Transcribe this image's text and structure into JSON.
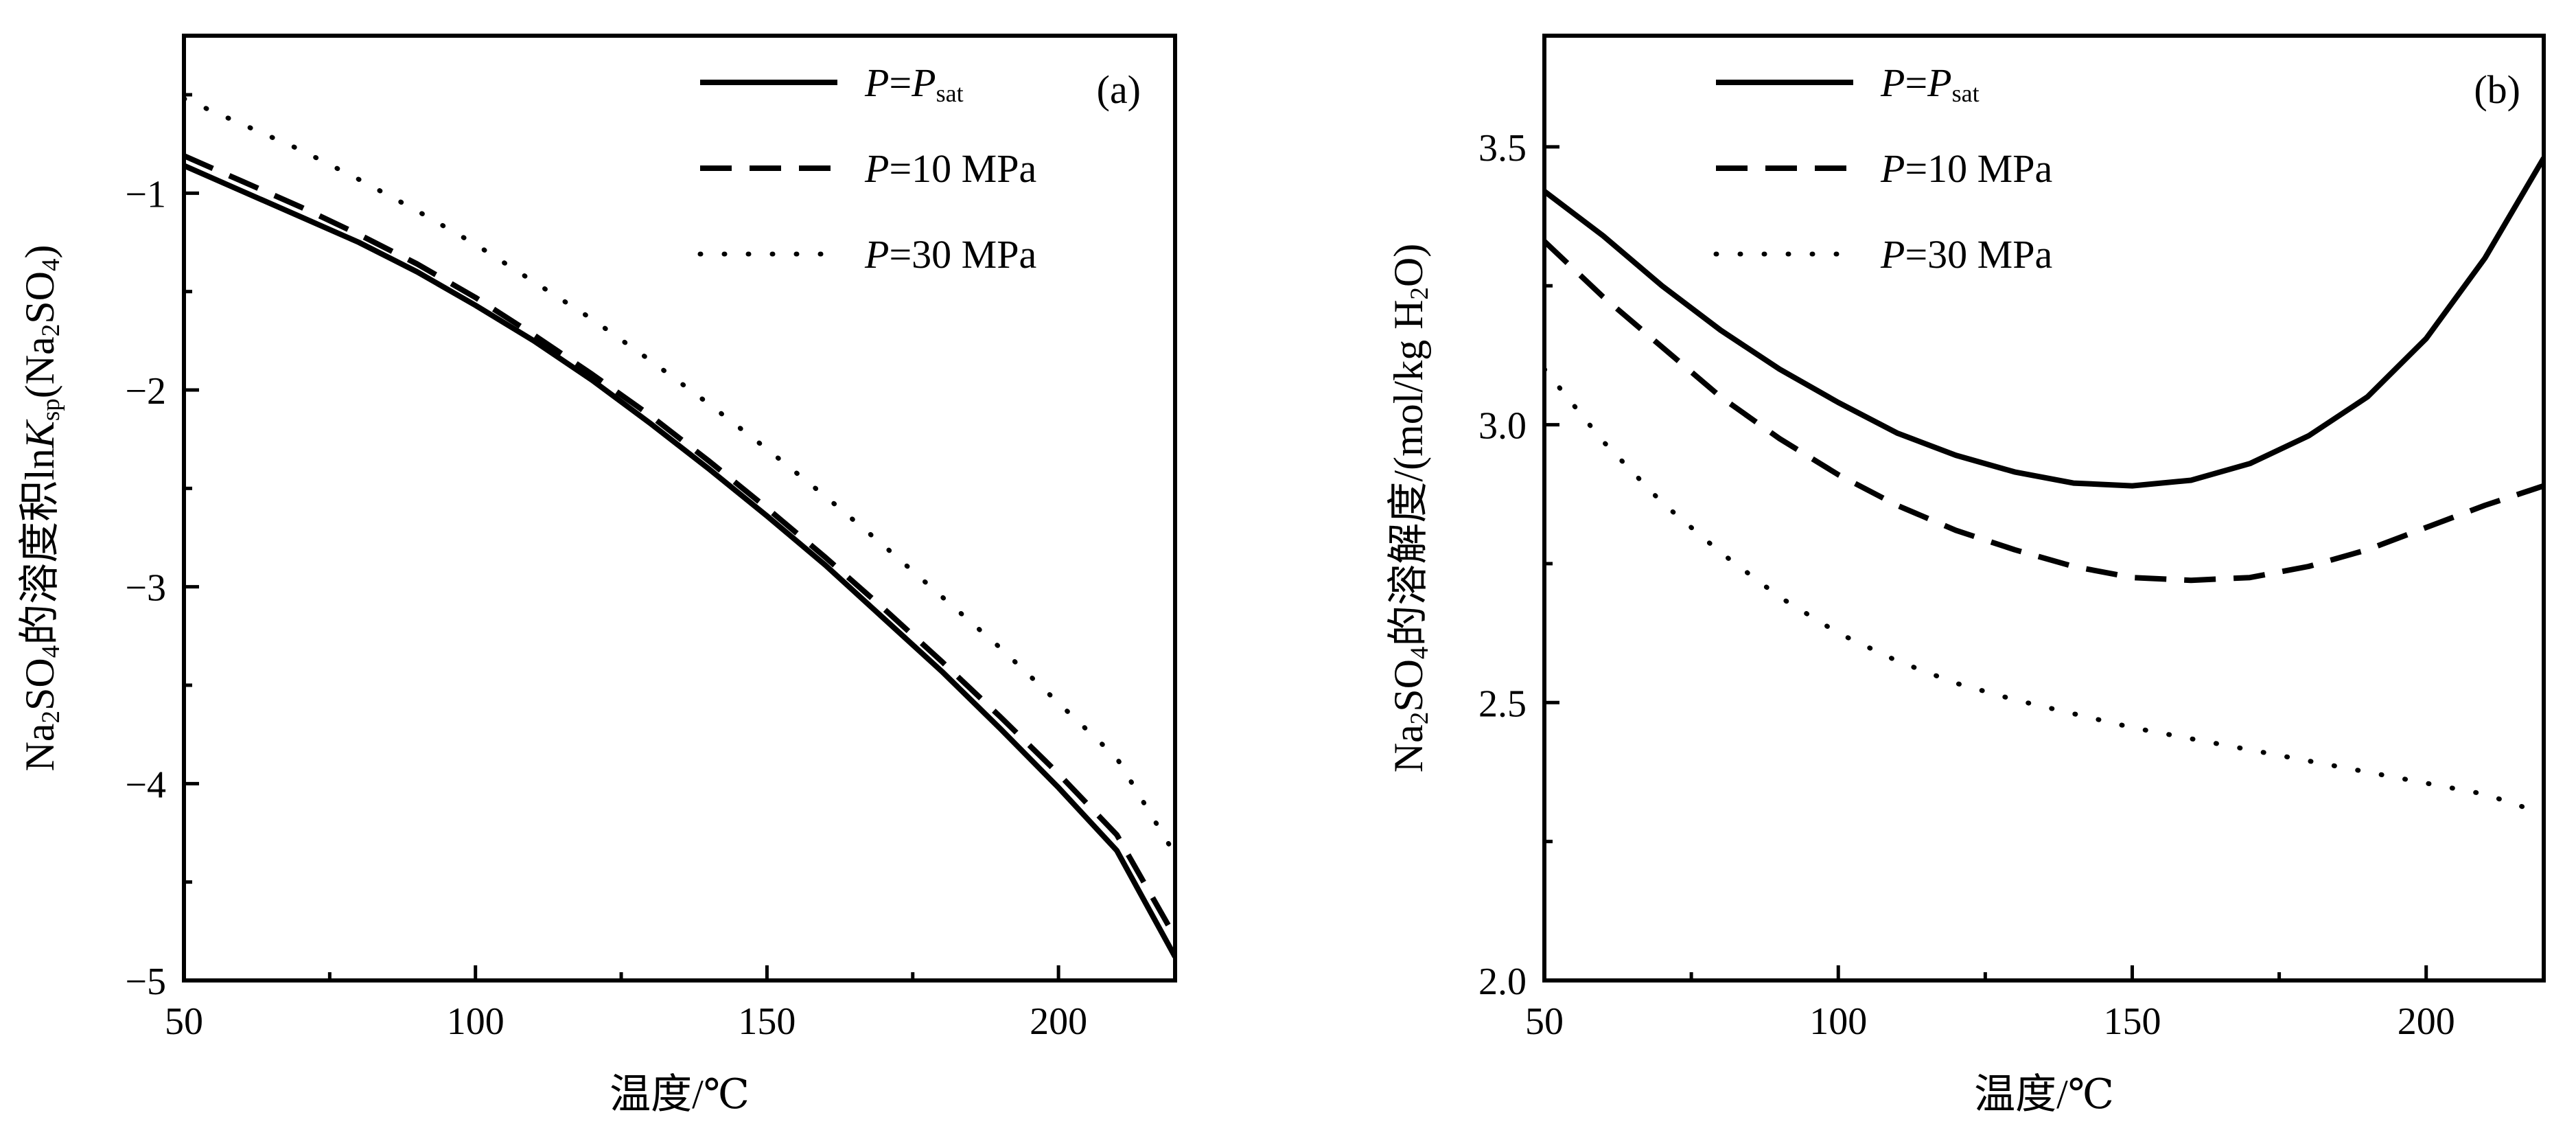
{
  "chart_data": [
    {
      "type": "line",
      "panel_label": "(a)",
      "xlabel": "温度/℃",
      "ylabel": {
        "parts": [
          {
            "t": "Na"
          },
          {
            "t": "2",
            "s": "sub"
          },
          {
            "t": "SO"
          },
          {
            "t": "4",
            "s": "sub"
          },
          {
            "t": "的溶度积ln"
          },
          {
            "t": "K",
            "s": "it"
          },
          {
            "t": "sp",
            "s": "sub"
          },
          {
            "t": "(Na"
          },
          {
            "t": "2",
            "s": "sub"
          },
          {
            "t": "SO"
          },
          {
            "t": "4",
            "s": "sub"
          },
          {
            "t": ")"
          }
        ]
      },
      "xlim": [
        50,
        220
      ],
      "ylim": [
        -5,
        -0.2
      ],
      "xticks": [
        50,
        100,
        150,
        200
      ],
      "xticklabels": [
        "50",
        "100",
        "150",
        "200"
      ],
      "yticks": [
        -5,
        -4,
        -3,
        -2,
        -1
      ],
      "yticklabels": [
        "−5",
        "−4",
        "−3",
        "−2",
        "−1"
      ],
      "grid": false,
      "legend_position": "top-right",
      "series": [
        {
          "name": "P=Psat",
          "label_parts": [
            {
              "t": "P",
              "s": "it"
            },
            {
              "t": "="
            },
            {
              "t": "P",
              "s": "it"
            },
            {
              "t": "sat",
              "s": "sub"
            }
          ],
          "style": "solid",
          "x": [
            50,
            60,
            70,
            80,
            90,
            100,
            110,
            120,
            130,
            140,
            150,
            160,
            170,
            180,
            190,
            200,
            210,
            220
          ],
          "y": [
            -0.86,
            -0.99,
            -1.12,
            -1.25,
            -1.4,
            -1.57,
            -1.75,
            -1.95,
            -2.17,
            -2.4,
            -2.64,
            -2.89,
            -3.16,
            -3.43,
            -3.72,
            -4.02,
            -4.34,
            -4.88
          ]
        },
        {
          "name": "P=10 MPa",
          "label_parts": [
            {
              "t": "P",
              "s": "it"
            },
            {
              "t": "=10 MPa"
            }
          ],
          "style": "dashed",
          "x": [
            50,
            60,
            70,
            80,
            90,
            100,
            110,
            120,
            130,
            140,
            150,
            160,
            170,
            180,
            190,
            200,
            210,
            220
          ],
          "y": [
            -0.81,
            -0.94,
            -1.07,
            -1.21,
            -1.36,
            -1.53,
            -1.72,
            -1.92,
            -2.13,
            -2.36,
            -2.6,
            -2.85,
            -3.11,
            -3.38,
            -3.66,
            -3.95,
            -4.26,
            -4.78
          ]
        },
        {
          "name": "P=30 MPa",
          "label_parts": [
            {
              "t": "P",
              "s": "it"
            },
            {
              "t": "=30 MPa"
            }
          ],
          "style": "dotted",
          "x": [
            50,
            60,
            70,
            80,
            90,
            100,
            110,
            120,
            130,
            140,
            150,
            160,
            170,
            180,
            190,
            200,
            210,
            220
          ],
          "y": [
            -0.52,
            -0.65,
            -0.78,
            -0.93,
            -1.09,
            -1.26,
            -1.45,
            -1.64,
            -1.85,
            -2.07,
            -2.3,
            -2.54,
            -2.79,
            -3.05,
            -3.31,
            -3.59,
            -3.87,
            -4.36
          ]
        }
      ]
    },
    {
      "type": "line",
      "panel_label": "(b)",
      "xlabel": "温度/℃",
      "ylabel": {
        "parts": [
          {
            "t": "Na"
          },
          {
            "t": "2",
            "s": "sub"
          },
          {
            "t": "SO"
          },
          {
            "t": "4",
            "s": "sub"
          },
          {
            "t": "的溶解度/(mol/kg H"
          },
          {
            "t": "2",
            "s": "sub"
          },
          {
            "t": "O)"
          }
        ]
      },
      "xlim": [
        50,
        220
      ],
      "ylim": [
        2.0,
        3.7
      ],
      "xticks": [
        50,
        100,
        150,
        200
      ],
      "xticklabels": [
        "50",
        "100",
        "150",
        "200"
      ],
      "yticks": [
        2.0,
        2.5,
        3.0,
        3.5
      ],
      "yticklabels": [
        "2.0",
        "2.5",
        "3.0",
        "3.5"
      ],
      "grid": false,
      "legend_position": "top-left",
      "series": [
        {
          "name": "P=Psat",
          "label_parts": [
            {
              "t": "P",
              "s": "it"
            },
            {
              "t": "="
            },
            {
              "t": "P",
              "s": "it"
            },
            {
              "t": "sat",
              "s": "sub"
            }
          ],
          "style": "solid",
          "x": [
            50,
            60,
            70,
            80,
            90,
            100,
            110,
            120,
            130,
            140,
            150,
            160,
            170,
            180,
            190,
            200,
            210,
            220
          ],
          "y": [
            3.42,
            3.34,
            3.25,
            3.17,
            3.1,
            3.04,
            2.985,
            2.945,
            2.915,
            2.895,
            2.89,
            2.9,
            2.93,
            2.98,
            3.05,
            3.155,
            3.3,
            3.48
          ]
        },
        {
          "name": "P=10 MPa",
          "label_parts": [
            {
              "t": "P",
              "s": "it"
            },
            {
              "t": "=10 MPa"
            }
          ],
          "style": "dashed",
          "x": [
            50,
            60,
            70,
            80,
            90,
            100,
            110,
            120,
            130,
            140,
            150,
            160,
            170,
            180,
            190,
            200,
            210,
            220
          ],
          "y": [
            3.33,
            3.23,
            3.14,
            3.05,
            2.975,
            2.91,
            2.855,
            2.81,
            2.775,
            2.745,
            2.725,
            2.72,
            2.725,
            2.745,
            2.775,
            2.815,
            2.855,
            2.89
          ]
        },
        {
          "name": "P=30 MPa",
          "label_parts": [
            {
              "t": "P",
              "s": "it"
            },
            {
              "t": "=30 MPa"
            }
          ],
          "style": "dotted",
          "x": [
            50,
            60,
            70,
            80,
            90,
            100,
            110,
            120,
            130,
            140,
            150,
            160,
            170,
            180,
            190,
            200,
            210,
            220
          ],
          "y": [
            3.1,
            2.97,
            2.86,
            2.77,
            2.69,
            2.625,
            2.575,
            2.535,
            2.505,
            2.48,
            2.455,
            2.435,
            2.415,
            2.395,
            2.375,
            2.355,
            2.335,
            2.3
          ]
        }
      ]
    }
  ]
}
